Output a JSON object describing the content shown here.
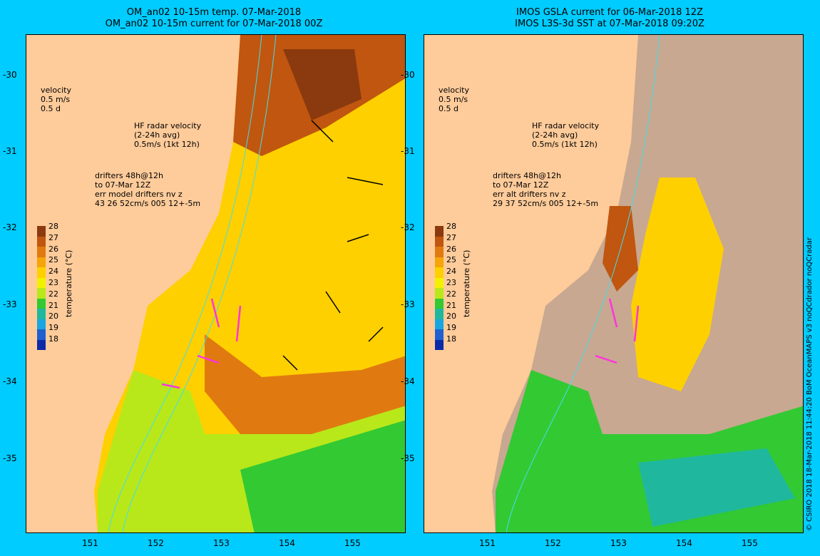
{
  "left": {
    "title_line1": "OM_an02 10-15m temp. 07-Mar-2018",
    "title_line2": "OM_an02 10-15m current for 07-Mar-2018 00Z",
    "drifter_lines": [
      "drifters 48h@12h",
      "to 07-Mar 12Z",
      "err model drifters nv z",
      "43 26 52cm/s 005 12+-5m"
    ]
  },
  "right": {
    "title_line1": "IMOS GSLA current for 06-Mar-2018 12Z",
    "title_line2": "IMOS L3S-3d SST at 07-Mar-2018 09:20Z",
    "drifter_lines": [
      "drifters 48h@12h",
      "to 07-Mar 12Z",
      "err alt drifters nv z",
      "29 37 52cm/s 005 12+-5m"
    ]
  },
  "velocity_legend": [
    "velocity",
    "0.5 m/s",
    "0.5 d"
  ],
  "hf_legend": [
    "HF radar velocity",
    "(2-24h avg)",
    "0.5m/s (1kt 12h)"
  ],
  "lat_labels": [
    "-30",
    "-31",
    "-32",
    "-33",
    "-34",
    "-35"
  ],
  "lon_labels": [
    "151",
    "152",
    "153",
    "154",
    "155"
  ],
  "colorbar": {
    "ticks": [
      "28",
      "27",
      "26",
      "25",
      "24",
      "23",
      "22",
      "21",
      "20",
      "19",
      "18"
    ],
    "label": "temperature (°C)",
    "colors": [
      "#8b3a0f",
      "#c0560f",
      "#e07a10",
      "#f5a50a",
      "#ffd000",
      "#f2f200",
      "#b8e81a",
      "#33c933",
      "#1fb89e",
      "#17a6e0",
      "#1f5fd0",
      "#0b2aa8"
    ]
  },
  "credit": "© CSIRO 2018   18-Mar-2018 11:44:20 BoM OceanMAPS v3 noQCdrador noQCradar",
  "colors": {
    "land": "#fecb9a",
    "frame": "#00ccff",
    "drifter": "#ff33dd",
    "contour": "#44ddee",
    "nodata": "#c8a890"
  }
}
